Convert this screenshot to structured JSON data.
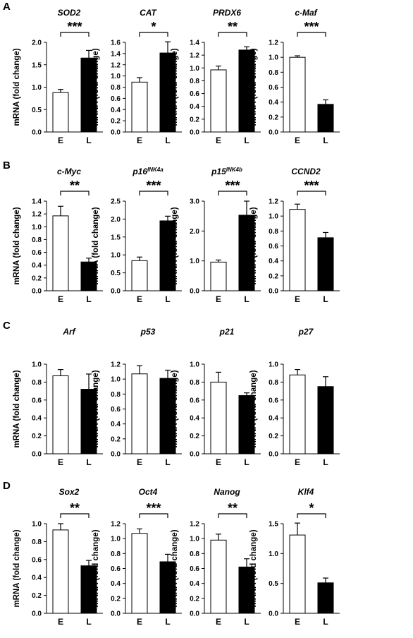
{
  "figure": {
    "y_axis_label": "mRNA (fold change)",
    "categories": [
      "E",
      "L"
    ],
    "colors": {
      "E": "#ffffff",
      "L": "#000000",
      "stroke": "#000000"
    }
  },
  "panels": [
    {
      "label": "A",
      "charts": [
        {
          "title": "SOD2",
          "sup": "",
          "ylim": [
            0,
            2.0
          ],
          "ticks": [
            0.0,
            0.5,
            1.0,
            1.5,
            2.0
          ],
          "decimals": 1,
          "sig": "***",
          "values": [
            0.88,
            1.65
          ],
          "errors": [
            0.07,
            0.17
          ]
        },
        {
          "title": "CAT",
          "sup": "",
          "ylim": [
            0,
            1.6
          ],
          "ticks": [
            0.0,
            0.2,
            0.4,
            0.6,
            0.8,
            1.0,
            1.2,
            1.4,
            1.6
          ],
          "decimals": 1,
          "sig": "*",
          "values": [
            0.89,
            1.41
          ],
          "errors": [
            0.08,
            0.2
          ]
        },
        {
          "title": "PRDX6",
          "sup": "",
          "ylim": [
            0,
            1.4
          ],
          "ticks": [
            0.0,
            0.2,
            0.4,
            0.6,
            0.8,
            1.0,
            1.2,
            1.4
          ],
          "decimals": 1,
          "sig": "**",
          "values": [
            0.97,
            1.28
          ],
          "errors": [
            0.06,
            0.05
          ]
        },
        {
          "title": "c-Maf",
          "sup": "",
          "ylim": [
            0,
            1.2
          ],
          "ticks": [
            0.0,
            0.2,
            0.4,
            0.6,
            0.8,
            1.0,
            1.2
          ],
          "decimals": 1,
          "sig": "***",
          "values": [
            1.0,
            0.37
          ],
          "errors": [
            0.02,
            0.06
          ]
        }
      ]
    },
    {
      "label": "B",
      "charts": [
        {
          "title": "c-Myc",
          "sup": "",
          "ylim": [
            0,
            1.4
          ],
          "ticks": [
            0.0,
            0.2,
            0.4,
            0.6,
            0.8,
            1.0,
            1.2,
            1.4
          ],
          "decimals": 1,
          "sig": "**",
          "values": [
            1.17,
            0.45
          ],
          "errors": [
            0.15,
            0.06
          ]
        },
        {
          "title": "p16",
          "sup": "INK4a",
          "ylim": [
            0,
            2.5
          ],
          "ticks": [
            0.0,
            0.5,
            1.0,
            1.5,
            2.0,
            2.5
          ],
          "decimals": 1,
          "sig": "***",
          "values": [
            0.84,
            1.95
          ],
          "errors": [
            0.1,
            0.13
          ]
        },
        {
          "title": "p15",
          "sup": "INK4b",
          "ylim": [
            0,
            3.0
          ],
          "ticks": [
            0.0,
            1.0,
            2.0,
            3.0
          ],
          "decimals": 1,
          "sig": "***",
          "values": [
            0.96,
            2.53
          ],
          "errors": [
            0.07,
            0.47
          ]
        },
        {
          "title": "CCND2",
          "sup": "",
          "ylim": [
            0,
            1.2
          ],
          "ticks": [
            0.0,
            0.2,
            0.4,
            0.6,
            0.8,
            1.0,
            1.2
          ],
          "decimals": 1,
          "sig": "***",
          "values": [
            1.09,
            0.71
          ],
          "errors": [
            0.07,
            0.07
          ]
        }
      ]
    },
    {
      "label": "C",
      "charts": [
        {
          "title": "Arf",
          "sup": "",
          "ylim": [
            0,
            1.0
          ],
          "ticks": [
            0.0,
            0.2,
            0.4,
            0.6,
            0.8,
            1.0
          ],
          "decimals": 1,
          "sig": "",
          "values": [
            0.87,
            0.72
          ],
          "errors": [
            0.07,
            0.17
          ]
        },
        {
          "title": "p53",
          "sup": "",
          "ylim": [
            0,
            1.2
          ],
          "ticks": [
            0.0,
            0.2,
            0.4,
            0.6,
            0.8,
            1.0,
            1.2
          ],
          "decimals": 1,
          "sig": "",
          "values": [
            1.07,
            1.01
          ],
          "errors": [
            0.11,
            0.11
          ]
        },
        {
          "title": "p21",
          "sup": "",
          "ylim": [
            0,
            1.0
          ],
          "ticks": [
            0.0,
            0.2,
            0.4,
            0.6,
            0.8,
            1.0
          ],
          "decimals": 1,
          "sig": "",
          "values": [
            0.8,
            0.65
          ],
          "errors": [
            0.11,
            0.03
          ]
        },
        {
          "title": "p27",
          "sup": "",
          "ylim": [
            0,
            1.0
          ],
          "ticks": [
            0.0,
            0.2,
            0.4,
            0.6,
            0.8,
            1.0
          ],
          "decimals": 1,
          "sig": "",
          "values": [
            0.88,
            0.75
          ],
          "errors": [
            0.06,
            0.11
          ]
        }
      ]
    },
    {
      "label": "D",
      "charts": [
        {
          "title": "Sox2",
          "sup": "",
          "ylim": [
            0,
            1.0
          ],
          "ticks": [
            0.0,
            0.2,
            0.4,
            0.6,
            0.8,
            1.0
          ],
          "decimals": 1,
          "sig": "**",
          "values": [
            0.93,
            0.53
          ],
          "errors": [
            0.07,
            0.06
          ]
        },
        {
          "title": "Oct4",
          "sup": "",
          "ylim": [
            0,
            1.2
          ],
          "ticks": [
            0.0,
            0.2,
            0.4,
            0.6,
            0.8,
            1.0,
            1.2
          ],
          "decimals": 1,
          "sig": "***",
          "values": [
            1.07,
            0.69
          ],
          "errors": [
            0.06,
            0.1
          ]
        },
        {
          "title": "Nanog",
          "sup": "",
          "ylim": [
            0,
            1.2
          ],
          "ticks": [
            0.0,
            0.2,
            0.4,
            0.6,
            0.8,
            1.0,
            1.2
          ],
          "decimals": 1,
          "sig": "**",
          "values": [
            0.98,
            0.62
          ],
          "errors": [
            0.08,
            0.11
          ]
        },
        {
          "title": "Klf4",
          "sup": "",
          "ylim": [
            0,
            1.5
          ],
          "ticks": [
            0.0,
            0.5,
            1.0,
            1.5
          ],
          "decimals": 1,
          "sig": "*",
          "values": [
            1.31,
            0.51
          ],
          "errors": [
            0.2,
            0.08
          ]
        }
      ]
    }
  ]
}
